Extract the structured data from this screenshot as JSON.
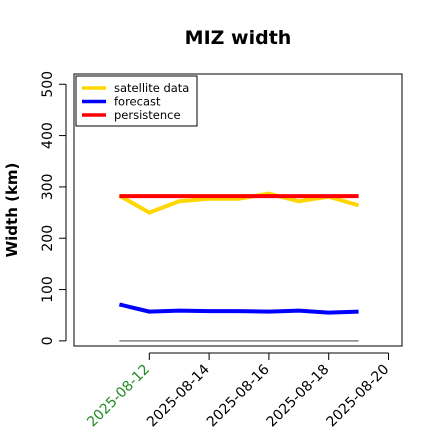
{
  "chart_data": {
    "type": "line",
    "title": "MIZ width",
    "xlabel": "",
    "ylabel": "Width (km)",
    "x": [
      "2025-08-11",
      "2025-08-12",
      "2025-08-13",
      "2025-08-14",
      "2025-08-15",
      "2025-08-16",
      "2025-08-17",
      "2025-08-18",
      "2025-08-19"
    ],
    "x_ticks": [
      "2025-08-12",
      "2025-08-14",
      "2025-08-16",
      "2025-08-18",
      "2025-08-20"
    ],
    "x_tick_colors": [
      "#228b22",
      "#000000",
      "#000000",
      "#000000",
      "#000000"
    ],
    "x_range": [
      "2025-08-10",
      "2025-08-20"
    ],
    "y_ticks": [
      0,
      100,
      200,
      300,
      400,
      500
    ],
    "ylim": [
      -10,
      520
    ],
    "grid": false,
    "legend_position": "top-left",
    "series": [
      {
        "name": "satellite data",
        "color": "#ffd700",
        "values": [
          283,
          250,
          272,
          277,
          277,
          287,
          272,
          281,
          264
        ]
      },
      {
        "name": "forecast",
        "color": "#0000ff",
        "values": [
          71,
          57,
          59,
          58,
          58,
          57,
          59,
          55,
          57
        ]
      },
      {
        "name": "persistence",
        "color": "#ff0000",
        "values": [
          282,
          282,
          282,
          282,
          282,
          282,
          282,
          282,
          282
        ]
      }
    ],
    "reference_line": {
      "value": 0,
      "from": "2025-08-11",
      "to": "2025-08-19",
      "color": "#808080"
    }
  }
}
